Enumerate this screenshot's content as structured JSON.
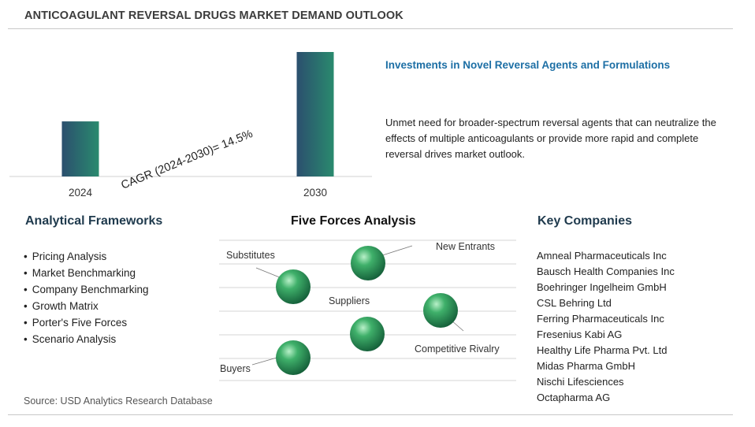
{
  "title": "ANTICOAGULANT REVERSAL DRUGS MARKET DEMAND OUTLOOK",
  "chart_data": {
    "type": "bar",
    "categories": [
      "2024",
      "2030"
    ],
    "values": [
      1,
      2.26
    ],
    "annotation": "CAGR (2024-2030)=  14.5%",
    "gradient_colors": [
      "#2b4f6e",
      "#2a8a6e"
    ]
  },
  "investments": {
    "title": "Investments in Novel Reversal Agents and Formulations",
    "body": "Unmet need for broader-spectrum reversal agents that can neutralize the effects of multiple anticoagulants or provide more rapid and complete reversal drives market outlook."
  },
  "frameworks": {
    "title": "Analytical Frameworks",
    "items": [
      "Pricing Analysis",
      "Market Benchmarking",
      "Company Benchmarking",
      "Growth Matrix",
      "Porter's Five Forces",
      "Scenario Analysis"
    ]
  },
  "five_forces": {
    "title": "Five Forces Analysis",
    "labels": [
      "Substitutes",
      "New Entrants",
      "Suppliers",
      "Competitive Rivalry",
      "Buyers"
    ],
    "sphere_color": "#2e9a5a"
  },
  "companies": {
    "title": "Key Companies",
    "items": [
      "Amneal Pharmaceuticals Inc",
      "Bausch Health Companies Inc",
      "Boehringer Ingelheim GmbH",
      "CSL Behring Ltd",
      "Ferring Pharmaceuticals Inc",
      "Fresenius Kabi AG",
      "Healthy Life Pharma Pvt. Ltd",
      "Midas Pharma GmbH",
      "Nischi Lifesciences",
      "Octapharma AG"
    ]
  },
  "source": "Source: USD Analytics Research Database"
}
